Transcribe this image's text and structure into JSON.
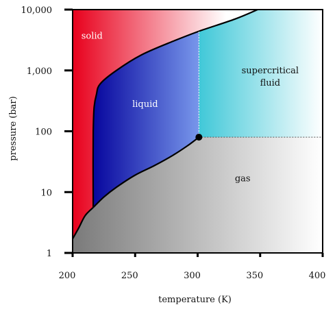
{
  "chart_data": {
    "type": "phase-diagram",
    "xlabel": "temperature (K)",
    "ylabel": "pressure (bar)",
    "x_scale": "linear",
    "y_scale": "log",
    "xlim": [
      200,
      400
    ],
    "ylim": [
      1,
      10000
    ],
    "x_ticks": [
      {
        "value": 200,
        "label": "200"
      },
      {
        "value": 250,
        "label": "250"
      },
      {
        "value": 300,
        "label": "300"
      },
      {
        "value": 350,
        "label": "350"
      },
      {
        "value": 400,
        "label": "400"
      }
    ],
    "y_ticks": [
      {
        "value": 1,
        "label": "1"
      },
      {
        "value": 10,
        "label": "10"
      },
      {
        "value": 100,
        "label": "100"
      },
      {
        "value": 1000,
        "label": "1,000"
      },
      {
        "value": 10000,
        "label": "10,000"
      }
    ],
    "regions": [
      {
        "id": "solid",
        "label": "solid",
        "color": "#ff2020",
        "label_at": [
          215.5,
          3300
        ],
        "label_color": "#ffffff"
      },
      {
        "id": "liquid",
        "label": "liquid",
        "color": "#1a1acc",
        "label_at": [
          258,
          250
        ],
        "label_color": "#ffffff"
      },
      {
        "id": "supercritical",
        "label_lines": [
          "supercritical",
          "fluid"
        ],
        "color": "#40c8d8",
        "label_at": [
          358,
          900
        ],
        "label_color": "#111111"
      },
      {
        "id": "gas",
        "label": "gas",
        "color": "#8a8a8a",
        "label_at": [
          336,
          15
        ],
        "label_color": "#111111"
      }
    ],
    "critical_point": {
      "T": 301,
      "P": 80
    },
    "sublimation_curve": [
      [
        200,
        1.7
      ],
      [
        205,
        2.6
      ],
      [
        210,
        4.1
      ],
      [
        216.5,
        5.6
      ]
    ],
    "vaporization_curve": [
      [
        216.5,
        5.6
      ],
      [
        225,
        8.3
      ],
      [
        235,
        12
      ],
      [
        250,
        19
      ],
      [
        265,
        27
      ],
      [
        280,
        40
      ],
      [
        292,
        58
      ],
      [
        301,
        80
      ]
    ],
    "melting_curve": [
      [
        216.5,
        5.6
      ],
      [
        216.4,
        30
      ],
      [
        216.5,
        100
      ],
      [
        217.2,
        250
      ],
      [
        219,
        400
      ],
      [
        222,
        600
      ],
      [
        235,
        1000
      ],
      [
        255,
        1800
      ],
      [
        280,
        3000
      ],
      [
        301,
        4400
      ],
      [
        330,
        7000
      ],
      [
        348,
        10000
      ]
    ],
    "supercritical_boundaries": {
      "T": 301,
      "P": 80
    }
  }
}
